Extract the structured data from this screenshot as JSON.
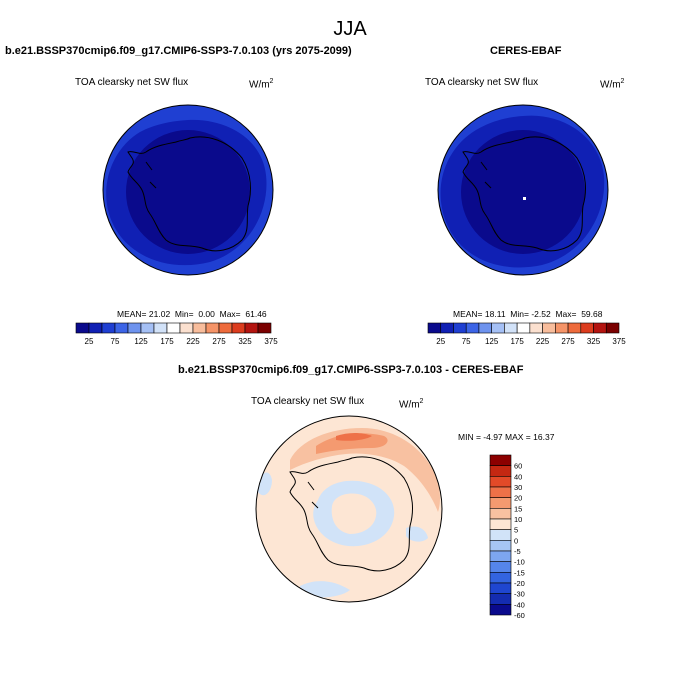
{
  "figure": {
    "title": "JJA"
  },
  "colors": {
    "abs_palette": [
      "#0a0a8c",
      "#1020b4",
      "#1f3fd2",
      "#3c64e6",
      "#6e93ee",
      "#a5c0f5",
      "#d2e2f8",
      "#ffffff",
      "#fbe0cf",
      "#f8bd9c",
      "#f59468",
      "#ee6b3c",
      "#dc3c1e",
      "#b41410",
      "#7a0000"
    ],
    "diff_palette": [
      "#0a0a8c",
      "#142cb0",
      "#1f46d0",
      "#3364e0",
      "#5585ea",
      "#7da6f0",
      "#a6c5f4",
      "#d1e3f8",
      "#fde6d4",
      "#f8c1a1",
      "#f49a70",
      "#ee7148",
      "#e24a28",
      "#c42812",
      "#8c0000"
    ]
  },
  "chart_data": [
    {
      "type": "heatmap",
      "projection": "south-polar-stereographic",
      "title": "b.e21.BSSP370cmip6.f09_g17.CMIP6-SSP3-7.0.103 (yrs 2075-2099)",
      "variable": "TOA clearsky net SW flux",
      "units": "W/m",
      "units_exp": "2",
      "stats": {
        "mean_label": "MEAN=",
        "mean": "21.02",
        "min_label": "Min=",
        "min": "0.00",
        "max_label": "Max=",
        "max": "61.46"
      },
      "colorbar": {
        "orientation": "horizontal",
        "bins": 15,
        "tick_labels": [
          "25",
          "75",
          "125",
          "175",
          "225",
          "275",
          "325",
          "375"
        ]
      }
    },
    {
      "type": "heatmap",
      "projection": "south-polar-stereographic",
      "title": "CERES-EBAF",
      "variable": "TOA clearsky net SW flux",
      "units": "W/m",
      "units_exp": "2",
      "stats": {
        "mean_label": "MEAN=",
        "mean": "18.11",
        "min_label": "Min=",
        "min": "-2.52",
        "max_label": "Max=",
        "max": "59.68"
      },
      "colorbar": {
        "orientation": "horizontal",
        "bins": 15,
        "tick_labels": [
          "25",
          "75",
          "125",
          "175",
          "225",
          "275",
          "325",
          "375"
        ]
      }
    },
    {
      "type": "heatmap",
      "projection": "south-polar-stereographic",
      "title": "b.e21.BSSP370cmip6.f09_g17.CMIP6-SSP3-7.0.103 - CERES-EBAF",
      "variable": "TOA clearsky net SW flux",
      "units": "W/m",
      "units_exp": "2",
      "stats": {
        "min_label": "MIN =",
        "min": "-4.97",
        "max_label": "MAX =",
        "max": "16.37"
      },
      "colorbar": {
        "orientation": "vertical",
        "bins": 15,
        "tick_labels": [
          "60",
          "40",
          "30",
          "20",
          "15",
          "10",
          "5",
          "0",
          "-5",
          "-10",
          "-15",
          "-20",
          "-30",
          "-40",
          "-60"
        ]
      }
    }
  ]
}
